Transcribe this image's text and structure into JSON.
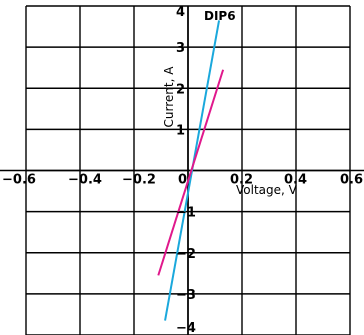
{
  "chart_data": {
    "type": "line",
    "title": "DIP6",
    "xlabel": "Voltage, V",
    "ylabel": "Current, A",
    "xlim": [
      -0.6,
      0.6
    ],
    "ylim": [
      -4,
      4
    ],
    "x_ticks": [
      "−0.6",
      "−0.4",
      "−0.2",
      "0",
      "0.2",
      "0.4",
      "0.6"
    ],
    "y_ticks": [
      "4",
      "3",
      "2",
      "1",
      "−1",
      "−2",
      "−3",
      "−4"
    ],
    "grid": true,
    "series": [
      {
        "color": "#1aa8dc",
        "x": [
          -0.085,
          0.115
        ],
        "y": [
          -3.65,
          3.65
        ]
      },
      {
        "color": "#e0188c",
        "x": [
          -0.11,
          0.13
        ],
        "y": [
          -2.55,
          2.45
        ]
      }
    ]
  }
}
